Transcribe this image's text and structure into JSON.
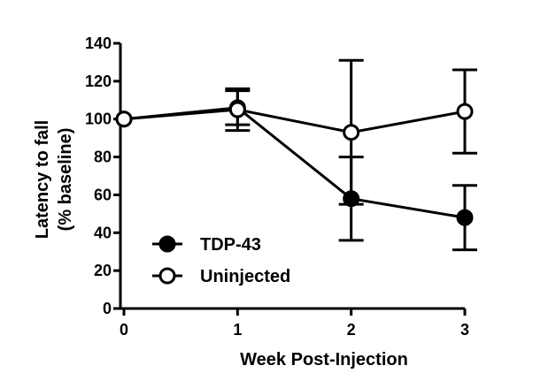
{
  "chart_data": {
    "type": "line",
    "title": "",
    "xlabel": "Week Post-Injection",
    "ylabel_line1": "Latency to fall",
    "ylabel_line2": "(%  baseline)",
    "x": [
      0,
      1,
      2,
      3
    ],
    "xlim": [
      0,
      3
    ],
    "ylim": [
      0,
      140
    ],
    "yticks": [
      0,
      20,
      40,
      60,
      80,
      100,
      120,
      140
    ],
    "xticks": [
      0,
      1,
      2,
      3
    ],
    "grid": false,
    "legend_position": "bottom-left",
    "series": [
      {
        "name": "TDP-43",
        "marker": "filled-circle",
        "color": "#000000",
        "values": [
          100,
          106,
          58,
          48
        ],
        "error": [
          0,
          9,
          22,
          17
        ]
      },
      {
        "name": "Uninjected",
        "marker": "open-circle",
        "color": "#000000",
        "values": [
          100,
          105,
          93,
          104
        ],
        "error": [
          0,
          11,
          38,
          22
        ]
      }
    ]
  }
}
